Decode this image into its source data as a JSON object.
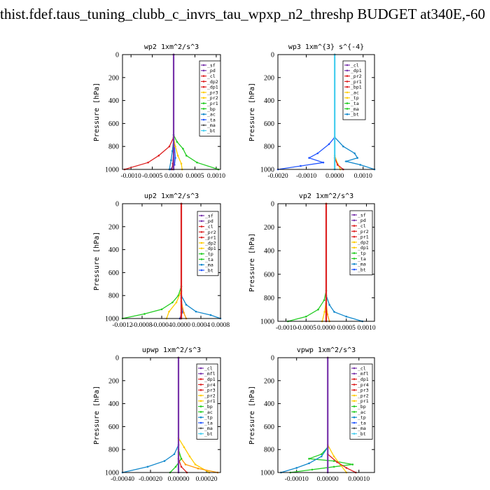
{
  "page": {
    "title": "thist.fdef.taus_tuning_clubb_c_invrs_tau_wpxp_n2_threshp  BUDGET at340E,-60"
  },
  "chart_data": [
    {
      "type": "line",
      "title": "wp2   1xm^2/s^3",
      "ylabel": "Pressure  [hPa]",
      "xlim": [
        -0.0012,
        0.0011
      ],
      "ylim": [
        1000,
        0
      ],
      "xticks": [
        -0.001,
        -0.0005,
        0.0,
        0.0005,
        0.001
      ],
      "xticklabels": [
        "-0.0010",
        "-0.0005",
        "0.0000",
        "0.0005",
        "0.0010"
      ],
      "yticks": [
        0,
        200,
        400,
        600,
        800,
        1000
      ],
      "legend": [
        "_sf",
        "_pd",
        "_cl",
        "_dp2",
        "_dp1",
        "_pr3",
        "_pr2",
        "_pr1",
        "_bp",
        "_ac",
        "_ta",
        "_ma",
        "_bt"
      ],
      "series": [
        {
          "name": "_ta",
          "color": "#2255ff",
          "x": [
            0,
            0,
            2e-05,
            4e-05,
            2e-05,
            -8e-05
          ],
          "y": [
            0,
            700,
            800,
            900,
            960,
            1000
          ]
        },
        {
          "name": "_bp",
          "color": "#22cc22",
          "x": [
            0,
            0,
            8e-05,
            0.00022,
            0.0003,
            0.00055,
            0.00105
          ],
          "y": [
            0,
            700,
            760,
            820,
            880,
            940,
            1000
          ]
        },
        {
          "name": "_pr1",
          "color": "#ffcc00",
          "x": [
            0,
            0,
            4e-05,
            0.0001,
            0.00018,
            0.0002
          ],
          "y": [
            0,
            720,
            800,
            880,
            950,
            1000
          ]
        },
        {
          "name": "_ac",
          "color": "#1188cc",
          "x": [
            0,
            0,
            -3e-05,
            -6e-05,
            -0.0001
          ],
          "y": [
            0,
            740,
            840,
            920,
            1000
          ]
        },
        {
          "name": "_dp1",
          "color": "#dd2222",
          "x": [
            0,
            0,
            -0.0001,
            -0.00035,
            -0.0006,
            -0.00115
          ],
          "y": [
            0,
            720,
            800,
            880,
            940,
            1000
          ]
        },
        {
          "name": "_bt",
          "color": "#44ccee",
          "x": [
            0,
            0,
            1e-05,
            0
          ],
          "y": [
            0,
            800,
            900,
            1000
          ]
        },
        {
          "name": "_cl",
          "color": "#b02040",
          "x": [
            0,
            0,
            -2e-05,
            -4e-05
          ],
          "y": [
            0,
            850,
            950,
            1000
          ]
        },
        {
          "name": "_sf",
          "color": "#7733aa",
          "x": [
            0,
            0
          ],
          "y": [
            0,
            1000
          ]
        }
      ]
    },
    {
      "type": "line",
      "title": "wp3   1xm^{3} s^{-4}",
      "ylabel": "Pressure  [hPa]",
      "xlim": [
        -0.002,
        0.0014
      ],
      "ylim": [
        1000,
        0
      ],
      "xticks": [
        -0.002,
        -0.001,
        0.0,
        0.001
      ],
      "xticklabels": [
        "-0.0020",
        "-0.0010",
        "0.0000",
        "0.0010"
      ],
      "yticks": [
        0,
        200,
        400,
        600,
        800,
        1000
      ],
      "legend": [
        "_cl",
        "_dp1",
        "_pr2",
        "_pr1",
        "_bp1",
        "_ac",
        "_tp",
        "_ta",
        "_ma",
        "_bt"
      ],
      "series": [
        {
          "name": "_ta",
          "color": "#2255ff",
          "x": [
            0,
            0,
            -0.0002,
            -0.0006,
            -0.0009,
            -0.0004,
            -0.0012,
            -0.002
          ],
          "y": [
            0,
            720,
            780,
            860,
            900,
            940,
            970,
            1000
          ]
        },
        {
          "name": "_tp",
          "color": "#1188cc",
          "x": [
            0,
            0,
            0.0003,
            0.0007,
            0.0008,
            0.0004,
            0.0009,
            0.0014
          ],
          "y": [
            0,
            720,
            800,
            860,
            900,
            930,
            960,
            1000
          ]
        },
        {
          "name": "_pr1",
          "color": "#ffcc00",
          "x": [
            0,
            0,
            0.0001,
            0.0002
          ],
          "y": [
            0,
            880,
            950,
            1000
          ]
        },
        {
          "name": "_cl",
          "color": "#dd2222",
          "x": [
            0,
            0,
            0.0001,
            0.0003
          ],
          "y": [
            0,
            900,
            960,
            1000
          ]
        },
        {
          "name": "_bt",
          "color": "#44ccee",
          "x": [
            0,
            0
          ],
          "y": [
            0,
            1000
          ]
        }
      ]
    },
    {
      "type": "line",
      "title": "up2   1xm^2/s^3",
      "ylabel": "Pressure  [hPa]",
      "xlim": [
        -0.0012,
        0.0008
      ],
      "ylim": [
        1000,
        0
      ],
      "xticks": [
        -0.0012,
        -0.0008,
        -0.0004,
        0.0,
        0.0004,
        0.0008
      ],
      "xticklabels": [
        "-0.0012",
        "-0.0008",
        "-0.0004",
        "0.0000",
        "0.0004",
        "0.0008"
      ],
      "yticks": [
        0,
        200,
        400,
        600,
        800,
        1000
      ],
      "legend": [
        "_sf",
        "_pd",
        "_cl",
        "_pr2",
        "_pr1",
        "_dp2",
        "_dp1",
        "_tp",
        "_ta",
        "_ma",
        "_bt"
      ],
      "series": [
        {
          "name": "_dp1",
          "color": "#22cc22",
          "x": [
            0,
            0,
            -6e-05,
            -0.00018,
            -0.0004,
            -0.00075,
            -0.0012
          ],
          "y": [
            0,
            720,
            800,
            860,
            920,
            960,
            1000
          ]
        },
        {
          "name": "_pr2",
          "color": "#ffcc00",
          "x": [
            0,
            0,
            -0.0001,
            -0.00025,
            -0.0003
          ],
          "y": [
            0,
            760,
            860,
            940,
            1000
          ]
        },
        {
          "name": "_tp",
          "color": "#1188cc",
          "x": [
            0,
            0,
            0.0001,
            0.0003,
            0.0006,
            0.0008
          ],
          "y": [
            0,
            800,
            880,
            940,
            970,
            1000
          ]
        },
        {
          "name": "_ta",
          "color": "#2255ff",
          "x": [
            0,
            0,
            3e-05,
            -3e-05
          ],
          "y": [
            0,
            820,
            940,
            1000
          ]
        },
        {
          "name": "_pr1",
          "color": "#ff9900",
          "x": [
            0,
            0,
            5e-05,
            0.0001
          ],
          "y": [
            0,
            850,
            950,
            1000
          ]
        },
        {
          "name": "_sf",
          "color": "#7733aa",
          "x": [
            0,
            0,
            -2e-05
          ],
          "y": [
            0,
            950,
            1000
          ]
        },
        {
          "name": "_pd",
          "color": "#dd2222",
          "x": [
            0,
            0
          ],
          "y": [
            0,
            1000
          ]
        }
      ]
    },
    {
      "type": "line",
      "title": "vp2   1xm^2/s^3",
      "ylabel": "Pressure  [hPa]",
      "xlim": [
        -0.0012,
        0.0012
      ],
      "ylim": [
        1000,
        0
      ],
      "xticks": [
        -0.001,
        -0.0005,
        0.0,
        0.0005,
        0.001
      ],
      "xticklabels": [
        "-0.0010",
        "-0.0005",
        "0.0000",
        "0.0005",
        "0.0010"
      ],
      "yticks": [
        0,
        200,
        400,
        600,
        800,
        1000
      ],
      "legend": [
        "_sf",
        "_pd",
        "_cl",
        "_pr2",
        "_pr1",
        "_dp2",
        "_dp1",
        "_tp",
        "_ta",
        "_ma",
        "_bt"
      ],
      "series": [
        {
          "name": "_dp1",
          "color": "#22cc22",
          "x": [
            0,
            0,
            -5e-05,
            -0.0002,
            -0.0005,
            -0.00095
          ],
          "y": [
            0,
            740,
            820,
            900,
            960,
            1000
          ]
        },
        {
          "name": "_tp",
          "color": "#1188cc",
          "x": [
            0,
            0,
            8e-05,
            0.0002,
            0.0005,
            0.0009
          ],
          "y": [
            0,
            780,
            860,
            920,
            960,
            1000
          ]
        },
        {
          "name": "_pr2",
          "color": "#ffcc00",
          "x": [
            0,
            0,
            -4e-05,
            -0.0001
          ],
          "y": [
            0,
            820,
            920,
            1000
          ]
        },
        {
          "name": "_pr1",
          "color": "#ff9900",
          "x": [
            0,
            0,
            3e-05,
            8e-05
          ],
          "y": [
            0,
            850,
            940,
            1000
          ]
        },
        {
          "name": "_pd",
          "color": "#dd2222",
          "x": [
            0,
            0
          ],
          "y": [
            0,
            1000
          ]
        }
      ]
    },
    {
      "type": "line",
      "title": "upwp   1xm^2/s^3",
      "ylabel": "Pressure  [hPa]",
      "xlim": [
        -0.0004,
        0.0003
      ],
      "ylim": [
        1000,
        0
      ],
      "xticks": [
        -0.0004,
        -0.0002,
        0.0,
        0.0002
      ],
      "xticklabels": [
        "-0.00040",
        "-0.00020",
        "0.00000",
        "0.00020"
      ],
      "yticks": [
        0,
        200,
        400,
        600,
        800,
        1000
      ],
      "legend": [
        "_cl",
        "_mfl",
        "_dp1",
        "_pr4",
        "_pr3",
        "_pr2",
        "_pr1",
        "_bp",
        "_ac",
        "_tp",
        "_ta",
        "_ma",
        "_bt"
      ],
      "series": [
        {
          "name": "_tp",
          "color": "#1188cc",
          "x": [
            0,
            0,
            -3e-05,
            -0.0001,
            -0.00022,
            -0.0004
          ],
          "y": [
            0,
            760,
            840,
            900,
            950,
            1000
          ]
        },
        {
          "name": "_pr1",
          "color": "#ffcc00",
          "x": [
            0,
            0,
            4e-05,
            8e-05,
            0.00012,
            0.00022
          ],
          "y": [
            0,
            700,
            780,
            860,
            930,
            1000
          ]
        },
        {
          "name": "_pr3",
          "color": "#ff9900",
          "x": [
            0,
            0,
            2e-05,
            5e-05,
            0.00014,
            0.00028
          ],
          "y": [
            0,
            820,
            880,
            930,
            965,
            1000
          ]
        },
        {
          "name": "_bp",
          "color": "#22cc22",
          "x": [
            0,
            0,
            2e-05,
            -2e-05,
            -6e-05
          ],
          "y": [
            0,
            800,
            880,
            950,
            1000
          ]
        },
        {
          "name": "_dp1",
          "color": "#dd2222",
          "x": [
            0,
            0,
            2e-05,
            6e-05
          ],
          "y": [
            0,
            880,
            950,
            1000
          ]
        },
        {
          "name": "_cl",
          "color": "#7733aa",
          "x": [
            0,
            0
          ],
          "y": [
            0,
            1000
          ]
        }
      ]
    },
    {
      "type": "line",
      "title": "vpwp   1xm^2/s^3",
      "ylabel": "Pressure  [hPa]",
      "xlim": [
        -0.00016,
        0.00015
      ],
      "ylim": [
        1000,
        0
      ],
      "xticks": [
        -0.0001,
        0.0,
        0.0001
      ],
      "xticklabels": [
        "-0.00010",
        "0.00000",
        "0.00010"
      ],
      "yticks": [
        0,
        200,
        400,
        600,
        800,
        1000
      ],
      "legend": [
        "_cl",
        "_mfl",
        "_dp1",
        "_pr4",
        "_pr3",
        "_pr2",
        "_pr1",
        "_bp",
        "_ac",
        "_tp",
        "_ta",
        "_ma",
        "_bt"
      ],
      "series": [
        {
          "name": "_bp",
          "color": "#22cc22",
          "x": [
            0,
            0,
            -2e-05,
            -6e-05,
            2e-05,
            8e-05,
            2e-05,
            -5e-05,
            -0.00012
          ],
          "y": [
            0,
            780,
            840,
            880,
            900,
            930,
            950,
            975,
            1000
          ]
        },
        {
          "name": "_tp",
          "color": "#1188cc",
          "x": [
            0,
            0,
            -2e-05,
            -6e-05,
            -0.0001,
            -0.00015
          ],
          "y": [
            0,
            780,
            860,
            920,
            960,
            1000
          ]
        },
        {
          "name": "_pr1",
          "color": "#ffcc00",
          "x": [
            0,
            0,
            2e-05,
            4e-05,
            6e-05
          ],
          "y": [
            0,
            760,
            860,
            930,
            1000
          ]
        },
        {
          "name": "_dp1",
          "color": "#dd2222",
          "x": [
            0,
            0,
            3e-05,
            6e-05,
            9e-05
          ],
          "y": [
            0,
            840,
            910,
            960,
            1000
          ]
        },
        {
          "name": "_cl",
          "color": "#7733aa",
          "x": [
            0,
            0
          ],
          "y": [
            0,
            1000
          ]
        }
      ]
    }
  ]
}
